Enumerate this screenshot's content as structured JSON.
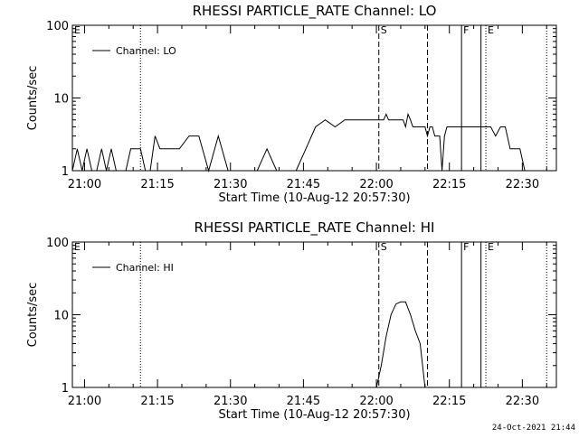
{
  "footer_timestamp": "24-Oct-2021 21:44",
  "chart_data": [
    {
      "type": "line",
      "title": "RHESSI PARTICLE_RATE Channel: LO",
      "xlabel": "Start Time (10-Aug-12 20:57:30)",
      "ylabel": "Counts/sec",
      "yscale": "log",
      "ylim": [
        1,
        100
      ],
      "xlim": [
        "20:57:30",
        "22:37:00"
      ],
      "xticks": [
        "21:00",
        "21:15",
        "21:30",
        "21:45",
        "22:00",
        "22:15",
        "22:30"
      ],
      "yticks": [
        "1",
        "10",
        "100"
      ],
      "legend": "top-left",
      "grid": false,
      "series": [
        {
          "name": "Channel: LO",
          "x": [
            "20:57:30",
            "20:58:30",
            "20:59:30",
            "21:00:30",
            "21:01:30",
            "21:02:30",
            "21:03:30",
            "21:04:30",
            "21:05:30",
            "21:06:30",
            "21:07:30",
            "21:08:30",
            "21:09:30",
            "21:10:30",
            "21:11:30",
            "21:12:30",
            "21:13:30",
            "21:14:30",
            "21:15:30",
            "21:17:30",
            "21:19:30",
            "21:21:30",
            "21:23:30",
            "21:25:30",
            "21:27:30",
            "21:29:30",
            "21:31:30",
            "21:33:30",
            "21:35:30",
            "21:37:30",
            "21:39:30",
            "21:41:30",
            "21:43:30",
            "21:45:30",
            "21:47:30",
            "21:49:30",
            "21:51:30",
            "21:53:30",
            "21:55:30",
            "21:57:30",
            "21:59:30",
            "22:00:30",
            "22:01:00",
            "22:01:30",
            "22:02:00",
            "22:02:30",
            "22:03:00",
            "22:03:30",
            "22:04:00",
            "22:04:30",
            "22:05:00",
            "22:05:30",
            "22:06:00",
            "22:06:30",
            "22:07:00",
            "22:07:30",
            "22:08:00",
            "22:08:30",
            "22:09:00",
            "22:09:30",
            "22:10:00",
            "22:10:30",
            "22:11:00",
            "22:11:30",
            "22:12:00",
            "22:12:30",
            "22:13:00",
            "22:13:30",
            "22:14:00",
            "22:14:30",
            "22:15:30",
            "22:16:30",
            "22:17:30",
            "22:18:30",
            "22:19:30",
            "22:20:30",
            "22:21:30",
            "22:22:30",
            "22:23:30",
            "22:24:30",
            "22:25:30",
            "22:26:30",
            "22:27:30",
            "22:28:30",
            "22:29:30",
            "22:30:30",
            "22:31:30",
            "22:32:30",
            "22:33:30"
          ],
          "values": [
            1,
            2,
            1,
            2,
            1,
            1,
            2,
            1,
            2,
            1,
            1,
            1,
            2,
            2,
            2,
            1,
            1,
            3,
            2,
            2,
            2,
            3,
            3,
            1,
            3,
            1,
            1,
            1,
            1,
            2,
            1,
            1,
            1,
            2,
            4,
            5,
            4,
            5,
            5,
            5,
            5,
            5,
            5,
            5,
            6,
            5,
            5,
            5,
            5,
            5,
            5,
            5,
            4,
            6,
            5,
            4,
            4,
            4,
            4,
            4,
            4,
            3,
            4,
            4,
            3,
            3,
            3,
            1,
            3,
            4,
            4,
            4,
            4,
            4,
            4,
            4,
            4,
            4,
            4,
            3,
            4,
            4,
            2,
            2,
            2,
            1,
            1,
            1,
            1
          ]
        }
      ],
      "annotations": [
        {
          "label": "E",
          "x": "20:57:30",
          "style": "none"
        },
        {
          "label": "",
          "x": "21:11:30",
          "style": "dotted"
        },
        {
          "label": "S",
          "x": "22:00:30",
          "style": "dashed"
        },
        {
          "label": "",
          "x": "22:10:30",
          "style": "dashed"
        },
        {
          "label": "F",
          "x": "22:17:30",
          "style": "solid"
        },
        {
          "label": "",
          "x": "22:21:30",
          "style": "solid"
        },
        {
          "label": "E",
          "x": "22:22:30",
          "style": "dotted"
        },
        {
          "label": "",
          "x": "22:35:00",
          "style": "dotted"
        }
      ]
    },
    {
      "type": "line",
      "title": "RHESSI PARTICLE_RATE Channel: HI",
      "xlabel": "Start Time (10-Aug-12 20:57:30)",
      "ylabel": "Counts/sec",
      "yscale": "log",
      "ylim": [
        1,
        100
      ],
      "xlim": [
        "20:57:30",
        "22:37:00"
      ],
      "xticks": [
        "21:00",
        "21:15",
        "21:30",
        "21:45",
        "22:00",
        "22:15",
        "22:30"
      ],
      "yticks": [
        "1",
        "10",
        "100"
      ],
      "legend": "top-left",
      "grid": false,
      "series": [
        {
          "name": "Channel: HI",
          "x": [
            "22:00:00",
            "22:01:00",
            "22:02:00",
            "22:03:00",
            "22:04:00",
            "22:05:00",
            "22:06:00",
            "22:07:00",
            "22:08:00",
            "22:09:00",
            "22:10:00"
          ],
          "values": [
            1,
            2,
            5,
            10,
            14,
            15,
            15,
            10,
            6,
            4,
            1
          ]
        }
      ],
      "annotations": [
        {
          "label": "E",
          "x": "20:57:30",
          "style": "none"
        },
        {
          "label": "",
          "x": "21:11:30",
          "style": "dotted"
        },
        {
          "label": "S",
          "x": "22:00:30",
          "style": "dashed"
        },
        {
          "label": "",
          "x": "22:10:30",
          "style": "dashed"
        },
        {
          "label": "F",
          "x": "22:17:30",
          "style": "solid"
        },
        {
          "label": "",
          "x": "22:21:30",
          "style": "solid"
        },
        {
          "label": "E",
          "x": "22:22:30",
          "style": "dotted"
        },
        {
          "label": "",
          "x": "22:35:00",
          "style": "dotted"
        }
      ]
    }
  ]
}
